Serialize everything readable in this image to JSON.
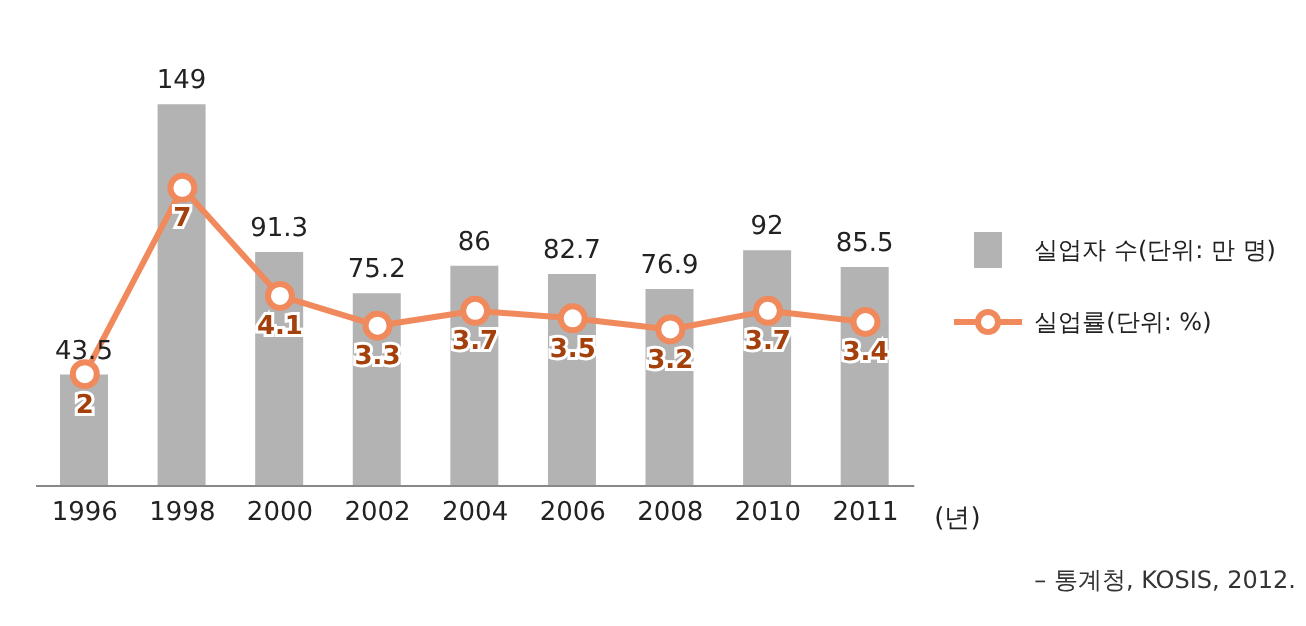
{
  "chart_data": {
    "type": "bar",
    "categories": [
      "1996",
      "1998",
      "2000",
      "2002",
      "2004",
      "2006",
      "2008",
      "2010",
      "2011"
    ],
    "xlabel": "(년)",
    "series": [
      {
        "name": "실업자 수(단위: 만 명)",
        "color": "#b3b3b3",
        "values": [
          43.5,
          149,
          91.3,
          75.2,
          86,
          82.7,
          76.9,
          92,
          85.5
        ]
      },
      {
        "name": "실업률(단위: %)",
        "type": "line",
        "axis": "y2",
        "color": "#f08a5d",
        "values": [
          2,
          7,
          4.1,
          3.3,
          3.7,
          3.5,
          3.2,
          3.7,
          3.4
        ]
      }
    ],
    "data_labels": true,
    "tick_labels": "x",
    "legend": "right",
    "marker": "circle",
    "line_style": "solid",
    "annotations": [
      "– 통계청, KOSIS, 2012."
    ]
  }
}
